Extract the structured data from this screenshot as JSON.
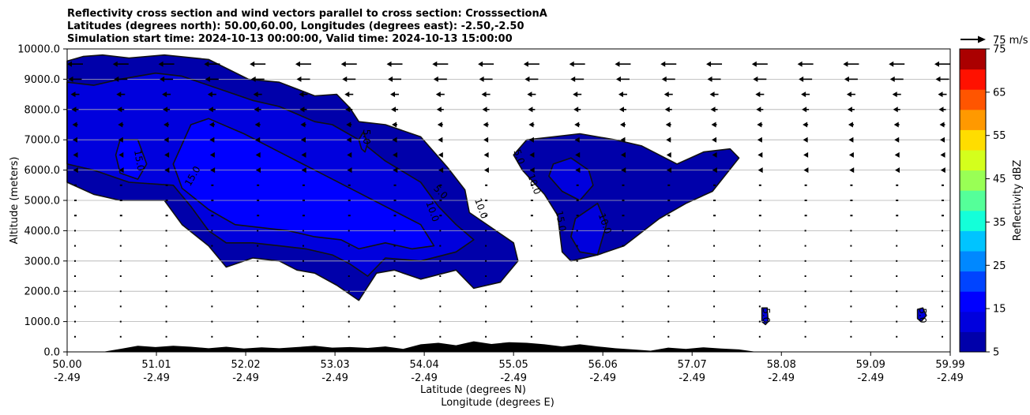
{
  "chart_data": {
    "type": "contour",
    "title_lines": [
      "Reflectivity cross section and wind vectors parallel to cross section: CrosssectionA",
      "Latitudes (degrees north): 50.00,60.00, Longitudes (degrees east): -2.50,-2.50",
      "Simulation start time: 2024-10-13 00:00:00, Valid time: 2024-10-13 15:00:00"
    ],
    "xlabel_lat": "Latitude (degrees N)",
    "xlabel_lon": "Longitude (degrees E)",
    "ylabel": "Altitude (meters)",
    "x_ticks": [
      {
        "lat": "50.00",
        "lon": "-2.49",
        "v": 50.0
      },
      {
        "lat": "51.01",
        "lon": "-2.49",
        "v": 51.01
      },
      {
        "lat": "52.02",
        "lon": "-2.49",
        "v": 52.02
      },
      {
        "lat": "53.03",
        "lon": "-2.49",
        "v": 53.03
      },
      {
        "lat": "54.04",
        "lon": "-2.49",
        "v": 54.04
      },
      {
        "lat": "55.05",
        "lon": "-2.49",
        "v": 55.05
      },
      {
        "lat": "56.06",
        "lon": "-2.49",
        "v": 56.06
      },
      {
        "lat": "57.07",
        "lon": "-2.49",
        "v": 57.07
      },
      {
        "lat": "58.08",
        "lon": "-2.49",
        "v": 58.08
      },
      {
        "lat": "59.09",
        "lon": "-2.49",
        "v": 59.09
      },
      {
        "lat": "59.99",
        "lon": "-2.49",
        "v": 59.99
      }
    ],
    "xlim": [
      50.0,
      59.99
    ],
    "y_ticks": [
      "0.0",
      "1000.0",
      "2000.0",
      "3000.0",
      "4000.0",
      "5000.0",
      "6000.0",
      "7000.0",
      "8000.0",
      "9000.0",
      "10000.0"
    ],
    "ylim": [
      0,
      10000
    ],
    "grid": "horizontal",
    "colorbar": {
      "label": "Reflectivity dBZ",
      "levels": [
        5,
        10,
        15,
        20,
        25,
        30,
        35,
        40,
        45,
        50,
        55,
        60,
        65,
        70,
        75
      ],
      "tick_labels": [
        "5",
        "15",
        "25",
        "35",
        "45",
        "55",
        "65",
        "75"
      ],
      "colors": [
        "#0000aa",
        "#0000dd",
        "#0000ff",
        "#0044ff",
        "#0088ff",
        "#00c4ff",
        "#14ffd9",
        "#55ff99",
        "#99ff55",
        "#d4ff1c",
        "#ffdd00",
        "#ff9900",
        "#ff5500",
        "#ff1100",
        "#aa0000"
      ]
    },
    "quiver_key": "75 m/s",
    "contour_labels": [
      "15.0",
      "15.0",
      "10.0",
      "10.0",
      "5.0",
      "5.0",
      "10.0",
      "15.0",
      "10.0",
      "5.0",
      "5.0",
      "5.0"
    ],
    "regions": [
      {
        "level": 5,
        "points": [
          [
            50.0,
            9600
          ],
          [
            50.18,
            9750
          ],
          [
            50.4,
            9800
          ],
          [
            50.7,
            9700
          ],
          [
            51.1,
            9800
          ],
          [
            51.6,
            9650
          ],
          [
            52.05,
            9000
          ],
          [
            52.4,
            8900
          ],
          [
            52.8,
            8450
          ],
          [
            53.05,
            8500
          ],
          [
            53.2,
            8050
          ],
          [
            53.3,
            7600
          ],
          [
            53.6,
            7500
          ],
          [
            54.0,
            7100
          ],
          [
            54.3,
            6100
          ],
          [
            54.5,
            5350
          ],
          [
            54.55,
            4600
          ],
          [
            54.85,
            4000
          ],
          [
            55.05,
            3600
          ],
          [
            55.1,
            3000
          ],
          [
            54.9,
            2300
          ],
          [
            54.6,
            2100
          ],
          [
            54.4,
            2700
          ],
          [
            54.0,
            2400
          ],
          [
            53.7,
            2700
          ],
          [
            53.5,
            2600
          ],
          [
            53.3,
            1700
          ],
          [
            53.05,
            2200
          ],
          [
            52.8,
            2600
          ],
          [
            52.6,
            2700
          ],
          [
            52.4,
            3000
          ],
          [
            52.1,
            3100
          ],
          [
            51.8,
            2800
          ],
          [
            51.6,
            3500
          ],
          [
            51.3,
            4200
          ],
          [
            51.1,
            5000
          ],
          [
            50.6,
            5000
          ],
          [
            50.3,
            5200
          ],
          [
            50.0,
            5600
          ]
        ]
      },
      {
        "level": 5,
        "points": [
          [
            55.05,
            6500
          ],
          [
            55.2,
            7000
          ],
          [
            55.5,
            7100
          ],
          [
            55.8,
            7200
          ],
          [
            56.0,
            7100
          ],
          [
            56.2,
            7000
          ],
          [
            56.5,
            6800
          ],
          [
            56.9,
            6200
          ],
          [
            57.2,
            6600
          ],
          [
            57.5,
            6700
          ],
          [
            57.6,
            6400
          ],
          [
            57.3,
            5300
          ],
          [
            57.0,
            4900
          ],
          [
            56.7,
            4400
          ],
          [
            56.3,
            3500
          ],
          [
            56.0,
            3200
          ],
          [
            55.7,
            3000
          ],
          [
            55.6,
            3300
          ],
          [
            55.55,
            4500
          ],
          [
            55.4,
            5200
          ],
          [
            55.15,
            6000
          ]
        ]
      },
      {
        "level": 10,
        "points": [
          [
            50.0,
            8900
          ],
          [
            50.3,
            8800
          ],
          [
            50.6,
            9000
          ],
          [
            51.0,
            9200
          ],
          [
            51.3,
            9100
          ],
          [
            51.8,
            8600
          ],
          [
            52.1,
            8300
          ],
          [
            52.4,
            8100
          ],
          [
            52.8,
            7600
          ],
          [
            53.0,
            7500
          ],
          [
            53.3,
            7000
          ],
          [
            53.6,
            6300
          ],
          [
            54.0,
            5600
          ],
          [
            54.2,
            4800
          ],
          [
            54.4,
            4200
          ],
          [
            54.6,
            3700
          ],
          [
            54.4,
            3300
          ],
          [
            54.0,
            3000
          ],
          [
            53.6,
            3100
          ],
          [
            53.4,
            2500
          ],
          [
            53.2,
            2900
          ],
          [
            53.0,
            3200
          ],
          [
            52.7,
            3400
          ],
          [
            52.4,
            3500
          ],
          [
            52.1,
            3600
          ],
          [
            51.8,
            3600
          ],
          [
            51.6,
            4000
          ],
          [
            51.4,
            4800
          ],
          [
            51.2,
            5500
          ],
          [
            50.7,
            5600
          ],
          [
            50.3,
            6000
          ],
          [
            50.0,
            6200
          ]
        ]
      },
      {
        "level": 10,
        "points": [
          [
            55.5,
            6200
          ],
          [
            55.7,
            6400
          ],
          [
            55.9,
            6000
          ],
          [
            55.95,
            5500
          ],
          [
            55.8,
            5000
          ],
          [
            55.6,
            5300
          ],
          [
            55.45,
            5800
          ]
        ]
      },
      {
        "level": 10,
        "points": [
          [
            55.75,
            4400
          ],
          [
            56.0,
            4900
          ],
          [
            56.1,
            4200
          ],
          [
            56.0,
            3200
          ],
          [
            55.8,
            3300
          ],
          [
            55.7,
            3800
          ]
        ]
      },
      {
        "level": 15,
        "points": [
          [
            50.6,
            7000
          ],
          [
            50.8,
            7000
          ],
          [
            50.9,
            6200
          ],
          [
            50.8,
            5700
          ],
          [
            50.6,
            5900
          ],
          [
            50.55,
            6500
          ]
        ]
      },
      {
        "level": 15,
        "points": [
          [
            51.4,
            7500
          ],
          [
            51.6,
            7700
          ],
          [
            52.0,
            7200
          ],
          [
            52.4,
            6600
          ],
          [
            52.8,
            6000
          ],
          [
            53.2,
            5400
          ],
          [
            53.6,
            4800
          ],
          [
            54.0,
            4200
          ],
          [
            54.15,
            3500
          ],
          [
            53.9,
            3400
          ],
          [
            53.6,
            3600
          ],
          [
            53.3,
            3400
          ],
          [
            53.1,
            3700
          ],
          [
            52.8,
            3800
          ],
          [
            52.5,
            4000
          ],
          [
            52.2,
            4100
          ],
          [
            51.9,
            4200
          ],
          [
            51.6,
            4700
          ],
          [
            51.3,
            5400
          ],
          [
            51.2,
            6200
          ]
        ]
      },
      {
        "level": 10,
        "points": [
          [
            53.35,
            7250
          ],
          [
            53.4,
            6900
          ],
          [
            53.37,
            6600
          ],
          [
            53.33,
            6700
          ],
          [
            53.3,
            7000
          ]
        ]
      },
      {
        "level": 10,
        "points": [
          [
            57.86,
            1450
          ],
          [
            57.92,
            1450
          ],
          [
            57.93,
            1000
          ],
          [
            57.9,
            900
          ],
          [
            57.86,
            1000
          ]
        ]
      },
      {
        "level": 10,
        "points": [
          [
            59.62,
            1400
          ],
          [
            59.68,
            1450
          ],
          [
            59.72,
            1200
          ],
          [
            59.66,
            1000
          ],
          [
            59.62,
            1100
          ]
        ]
      }
    ],
    "terrain": [
      [
        50.0,
        0
      ],
      [
        50.4,
        0
      ],
      [
        50.6,
        100
      ],
      [
        50.8,
        200
      ],
      [
        51.0,
        160
      ],
      [
        51.2,
        200
      ],
      [
        51.4,
        170
      ],
      [
        51.6,
        120
      ],
      [
        51.8,
        170
      ],
      [
        52.0,
        110
      ],
      [
        52.2,
        150
      ],
      [
        52.4,
        120
      ],
      [
        52.6,
        160
      ],
      [
        52.8,
        200
      ],
      [
        53.0,
        140
      ],
      [
        53.2,
        160
      ],
      [
        53.4,
        130
      ],
      [
        53.6,
        180
      ],
      [
        53.8,
        100
      ],
      [
        54.0,
        250
      ],
      [
        54.2,
        300
      ],
      [
        54.4,
        220
      ],
      [
        54.6,
        350
      ],
      [
        54.8,
        260
      ],
      [
        55.0,
        320
      ],
      [
        55.2,
        300
      ],
      [
        55.4,
        250
      ],
      [
        55.6,
        180
      ],
      [
        55.8,
        250
      ],
      [
        56.0,
        180
      ],
      [
        56.2,
        120
      ],
      [
        56.4,
        80
      ],
      [
        56.6,
        40
      ],
      [
        56.8,
        140
      ],
      [
        57.0,
        100
      ],
      [
        57.2,
        150
      ],
      [
        57.4,
        110
      ],
      [
        57.6,
        80
      ],
      [
        57.8,
        0
      ],
      [
        59.99,
        0
      ]
    ],
    "wind_rows": [
      {
        "alt": 9500,
        "speed": 1.0
      },
      {
        "alt": 9000,
        "speed": 0.85
      },
      {
        "alt": 8500,
        "speed": 0.55
      },
      {
        "alt": 8000,
        "speed": 0.45
      },
      {
        "alt": 7500,
        "speed": 0.35
      },
      {
        "alt": 7000,
        "speed": 0.3
      },
      {
        "alt": 6500,
        "speed": 0.25
      },
      {
        "alt": 6000,
        "speed": 0.22
      },
      {
        "alt": 5500,
        "speed": 0.18
      },
      {
        "alt": 5000,
        "speed": 0.15
      },
      {
        "alt": 4500,
        "speed": 0.12
      },
      {
        "alt": 4000,
        "speed": 0.08
      },
      {
        "alt": 3500,
        "speed": 0.06
      },
      {
        "alt": 3000,
        "speed": 0.03
      },
      {
        "alt": 2500,
        "speed": 0.02
      },
      {
        "alt": 2000,
        "speed": 0.01
      },
      {
        "alt": 1500,
        "speed": 0.01
      },
      {
        "alt": 1000,
        "speed": 0.01
      },
      {
        "alt": 500,
        "speed": 0.01
      }
    ]
  }
}
